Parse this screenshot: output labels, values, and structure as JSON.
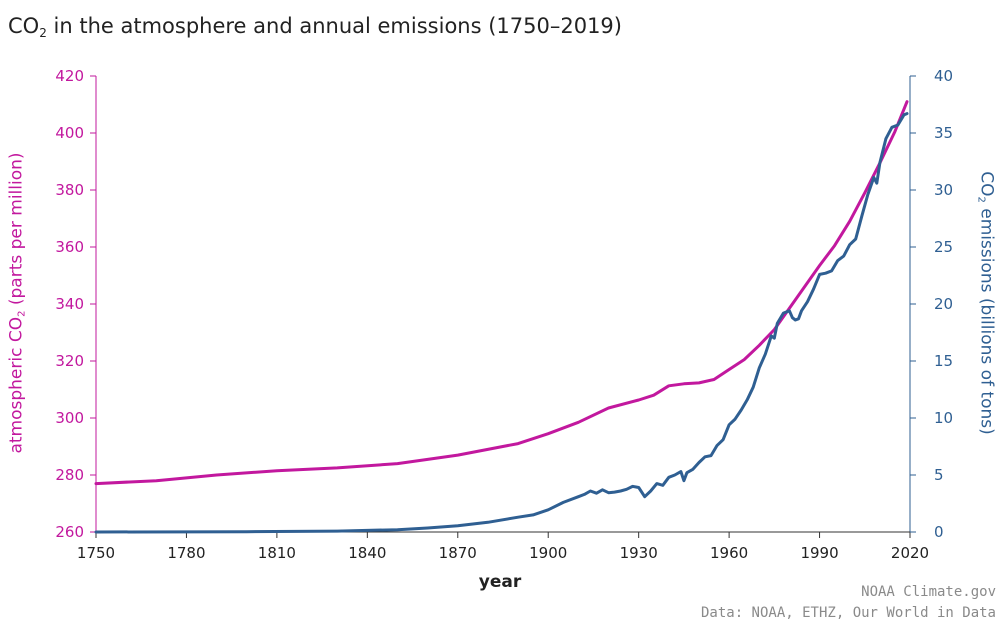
{
  "chart_data": {
    "type": "line",
    "title_main": "CO",
    "title_sub": "2",
    "title_rest": " in the atmosphere and annual emissions (1750–2019)",
    "xlabel": "year",
    "ylabel_left_main": "atmospheric CO",
    "ylabel_left_sub": "2",
    "ylabel_left_rest": " (parts per million)",
    "ylabel_right_main": "CO",
    "ylabel_right_sub": "2",
    "ylabel_right_rest": " emissions (billions of tons)",
    "xlim": [
      1750,
      2020
    ],
    "ylim_left": [
      260,
      420
    ],
    "ylim_right": [
      0,
      40
    ],
    "x_ticks": [
      1750,
      1780,
      1810,
      1840,
      1870,
      1900,
      1930,
      1960,
      1990,
      2020
    ],
    "y_ticks_left": [
      260,
      280,
      300,
      320,
      340,
      360,
      380,
      400,
      420
    ],
    "y_ticks_right": [
      0,
      5,
      10,
      15,
      20,
      25,
      30,
      35,
      40
    ],
    "grid": false,
    "series": [
      {
        "axis": "left",
        "color": "#c2189e",
        "x": [
          1750,
          1770,
          1790,
          1810,
          1830,
          1850,
          1870,
          1890,
          1900,
          1910,
          1920,
          1930,
          1935,
          1940,
          1945,
          1950,
          1955,
          1960,
          1965,
          1970,
          1975,
          1980,
          1985,
          1990,
          1995,
          2000,
          2005,
          2010,
          2015,
          2019
        ],
        "values": [
          277,
          278,
          280,
          281.5,
          282.5,
          284,
          287,
          291,
          294.5,
          298.5,
          303.5,
          306.3,
          308,
          311.3,
          312,
          312.3,
          313.5,
          317,
          320.5,
          325.5,
          331,
          338.5,
          346,
          353.5,
          360.5,
          369,
          379,
          389.5,
          400.5,
          411
        ]
      },
      {
        "axis": "right",
        "color": "#2f5f92",
        "x": [
          1750,
          1800,
          1830,
          1850,
          1860,
          1870,
          1880,
          1890,
          1895,
          1900,
          1905,
          1910,
          1912,
          1914,
          1916,
          1918,
          1920,
          1922,
          1924,
          1926,
          1928,
          1930,
          1932,
          1934,
          1936,
          1938,
          1940,
          1942,
          1944,
          1945,
          1946,
          1948,
          1950,
          1952,
          1954,
          1956,
          1958,
          1960,
          1962,
          1964,
          1966,
          1968,
          1970,
          1972,
          1974,
          1975,
          1976,
          1978,
          1980,
          1981,
          1982,
          1983,
          1984,
          1986,
          1988,
          1990,
          1992,
          1994,
          1996,
          1998,
          2000,
          2002,
          2004,
          2006,
          2008,
          2009,
          2010,
          2012,
          2014,
          2016,
          2018,
          2019
        ],
        "values": [
          0,
          0.03,
          0.08,
          0.2,
          0.35,
          0.55,
          0.85,
          1.3,
          1.5,
          1.95,
          2.6,
          3.1,
          3.3,
          3.6,
          3.4,
          3.7,
          3.45,
          3.5,
          3.6,
          3.75,
          4,
          3.9,
          3.1,
          3.6,
          4.25,
          4.1,
          4.8,
          5,
          5.3,
          4.5,
          5.2,
          5.5,
          6.1,
          6.6,
          6.7,
          7.6,
          8.1,
          9.4,
          9.9,
          10.7,
          11.6,
          12.7,
          14.4,
          15.6,
          17.2,
          17,
          18.3,
          19.2,
          19.4,
          18.8,
          18.6,
          18.7,
          19.4,
          20.2,
          21.3,
          22.6,
          22.7,
          22.9,
          23.8,
          24.2,
          25.2,
          25.7,
          27.7,
          29.6,
          31.1,
          30.6,
          32.4,
          34.5,
          35.5,
          35.7,
          36.6,
          36.7
        ]
      }
    ]
  },
  "credits": {
    "line1": "NOAA Climate.gov",
    "line2": "Data: NOAA, ETHZ, Our World in Data"
  }
}
